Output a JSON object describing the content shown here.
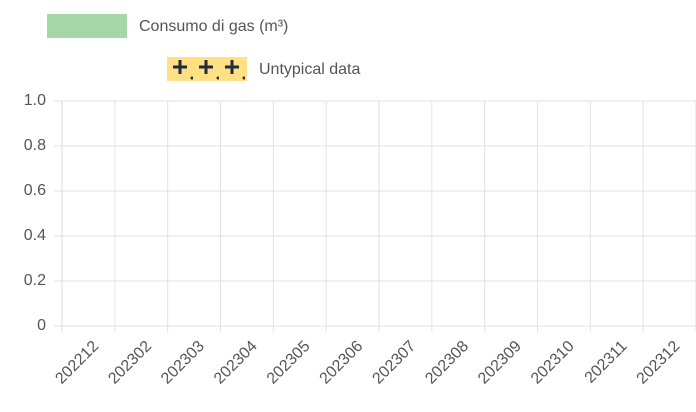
{
  "chart_data": {
    "type": "bar",
    "categories": [
      "202212",
      "202302",
      "202303",
      "202304",
      "202305",
      "202306",
      "202307",
      "202308",
      "202309",
      "202310",
      "202311",
      "202312"
    ],
    "series": [
      {
        "name": "Consumo di gas (m³)",
        "color": "#a5d6a7",
        "values": [
          null,
          null,
          null,
          null,
          null,
          null,
          null,
          null,
          null,
          null,
          null,
          null
        ]
      },
      {
        "name": "Untypical data",
        "color": "#ffe082",
        "values": [
          null,
          null,
          null,
          null,
          null,
          null,
          null,
          null,
          null,
          null,
          null,
          null
        ]
      }
    ],
    "ylim": [
      0,
      1
    ],
    "yticks": [
      0,
      0.2,
      0.4,
      0.6,
      0.8,
      {
        "value": 1,
        "label": "1.0"
      }
    ],
    "grid": true
  }
}
